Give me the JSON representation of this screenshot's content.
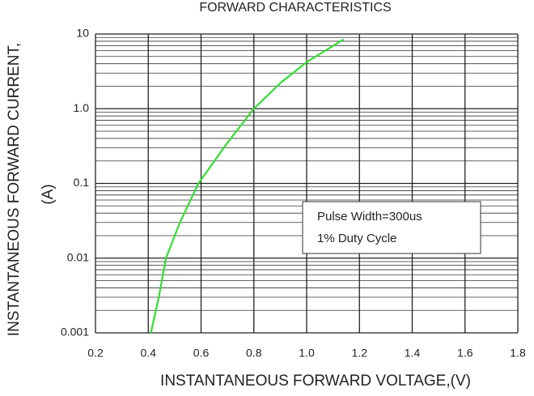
{
  "chart_data": {
    "type": "line",
    "title": "FORWARD CHARACTERISTICS",
    "xlabel": "INSTANTANEOUS FORWARD VOLTAGE,(V)",
    "ylabel": [
      "INSTANTANEOUS FORWARD CURRENT,",
      "(A)"
    ],
    "annotations": [
      "Pulse Width=300us",
      "1% Duty Cycle"
    ],
    "series": [
      {
        "color": "#33dd33",
        "x": [
          0.41,
          0.44,
          0.467,
          0.52,
          0.59,
          0.7,
          0.8,
          0.9,
          1.0,
          1.14
        ],
        "values": [
          0.001,
          0.003,
          0.01,
          0.03,
          0.1,
          0.35,
          1.0,
          2.2,
          4.2,
          8.5
        ]
      }
    ],
    "xlim": [
      0.2,
      1.8
    ],
    "xticks": [
      0.2,
      0.4,
      0.6,
      0.8,
      {
        "value": 1.0,
        "label": "1.0"
      },
      1.2,
      1.4,
      1.6,
      1.8
    ],
    "ylim": [
      0.001,
      10
    ],
    "yticks": [
      0.001,
      0.01,
      0.1,
      {
        "value": 1,
        "label": "1.0"
      },
      10
    ],
    "ylog": true,
    "grid": true,
    "minor_grid": true
  }
}
